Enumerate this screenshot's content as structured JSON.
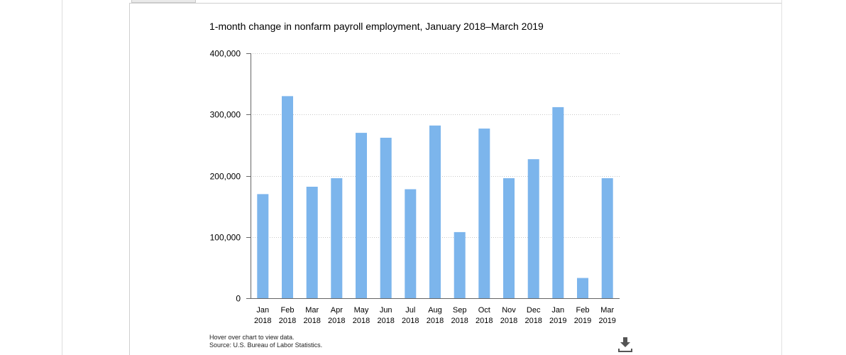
{
  "chart_data": {
    "type": "bar",
    "title": "1-month change in nonfarm payroll employment, January 2018–March 2019",
    "categories": [
      [
        "Jan",
        "2018"
      ],
      [
        "Feb",
        "2018"
      ],
      [
        "Mar",
        "2018"
      ],
      [
        "Apr",
        "2018"
      ],
      [
        "May",
        "2018"
      ],
      [
        "Jun",
        "2018"
      ],
      [
        "Jul",
        "2018"
      ],
      [
        "Aug",
        "2018"
      ],
      [
        "Sep",
        "2018"
      ],
      [
        "Oct",
        "2018"
      ],
      [
        "Nov",
        "2018"
      ],
      [
        "Dec",
        "2018"
      ],
      [
        "Jan",
        "2019"
      ],
      [
        "Feb",
        "2019"
      ],
      [
        "Mar",
        "2019"
      ]
    ],
    "values": [
      170000,
      330000,
      182000,
      196000,
      270000,
      262000,
      178000,
      282000,
      108000,
      277000,
      196000,
      227000,
      312000,
      33000,
      196000
    ],
    "ylim": [
      0,
      400000
    ],
    "yticks": [
      0,
      100000,
      200000,
      300000,
      400000
    ],
    "ytick_labels": [
      "0",
      "100,000",
      "200,000",
      "300,000",
      "400,000"
    ],
    "xlabel": "",
    "ylabel": "",
    "grid": true,
    "legend": "none",
    "bar_color": "#7cb5ec"
  },
  "notes": {
    "hover_hint": "Hover over chart to view data.",
    "source": "Source: U.S. Bureau of Labor Statistics."
  },
  "icons": {
    "download": "download-icon"
  }
}
